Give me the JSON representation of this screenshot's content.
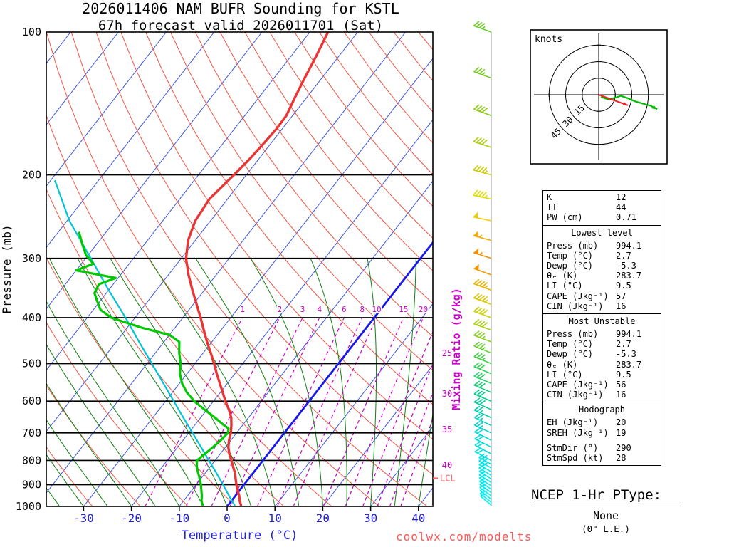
{
  "title_line1": "2026011406 NAM BUFR Sounding for KSTL",
  "title_line2": "67h forecast valid 2026011701 (Sat)",
  "watermark_text": "coolwx.com/modelts",
  "axes": {
    "pressure_label": "Pressure (mb)",
    "temperature_label": "Temperature (°C)",
    "mixing_ratio_label": "Mixing Ratio (g/kg)",
    "pressure_ticks_mb": [
      100,
      200,
      300,
      400,
      500,
      600,
      700,
      800,
      900,
      1000
    ],
    "temperature_ticks_c": [
      -30,
      -20,
      -10,
      0,
      10,
      20,
      30,
      40
    ],
    "mixing_ratio_inline_labels": [
      1,
      2,
      3,
      4,
      6,
      8,
      10,
      15,
      20
    ],
    "mixing_ratio_right_labels": [
      25,
      30,
      35,
      40
    ],
    "lcl_label": "LCL"
  },
  "chart_data": {
    "type": "line",
    "subtype": "skew-t log-p sounding",
    "pressure_axis_mb": [
      100,
      200,
      300,
      400,
      500,
      600,
      700,
      800,
      900,
      1000
    ],
    "temperature_axis_c": [
      -30,
      -20,
      -10,
      0,
      10,
      20,
      30,
      40
    ],
    "isotherm_step_c": 10,
    "highlight_isotherm_c": 0,
    "dry_adiabats_theta_k": {
      "min": 235,
      "max": 475,
      "step": 10
    },
    "moist_adiabats_thetaw_c": {
      "min": -60,
      "max": 40,
      "step": 5
    },
    "mixing_ratio_lines_gkg": [
      1,
      2,
      3,
      4,
      6,
      8,
      10,
      15,
      20,
      25,
      30,
      35,
      40
    ],
    "lcl_pressure_mb": 872,
    "temperature_profile_p_t": [
      [
        994,
        2.7
      ],
      [
        975,
        1.8
      ],
      [
        950,
        0.8
      ],
      [
        925,
        -0.4
      ],
      [
        900,
        -1.6
      ],
      [
        875,
        -2.7
      ],
      [
        850,
        -3.8
      ],
      [
        825,
        -5.2
      ],
      [
        800,
        -6.6
      ],
      [
        775,
        -8.1
      ],
      [
        750,
        -9.4
      ],
      [
        725,
        -10.4
      ],
      [
        700,
        -11.2
      ],
      [
        675,
        -12.3
      ],
      [
        650,
        -13.6
      ],
      [
        625,
        -15.4
      ],
      [
        600,
        -17.5
      ],
      [
        575,
        -19.5
      ],
      [
        550,
        -21.6
      ],
      [
        525,
        -23.8
      ],
      [
        500,
        -26.0
      ],
      [
        475,
        -28.4
      ],
      [
        450,
        -31.0
      ],
      [
        425,
        -33.6
      ],
      [
        400,
        -36.3
      ],
      [
        375,
        -39.3
      ],
      [
        350,
        -42.5
      ],
      [
        325,
        -45.8
      ],
      [
        300,
        -49.0
      ],
      [
        275,
        -51.5
      ],
      [
        250,
        -53.2
      ],
      [
        225,
        -53.8
      ],
      [
        200,
        -52.6
      ],
      [
        185,
        -51.9
      ],
      [
        175,
        -51.6
      ],
      [
        160,
        -51.2
      ],
      [
        150,
        -51.3
      ],
      [
        138,
        -52.4
      ],
      [
        125,
        -53.6
      ],
      [
        112,
        -54.8
      ],
      [
        100,
        -56.2
      ]
    ],
    "dewpoint_profile_p_t": [
      [
        994,
        -5.3
      ],
      [
        975,
        -6.2
      ],
      [
        950,
        -7.0
      ],
      [
        925,
        -8.0
      ],
      [
        900,
        -9.0
      ],
      [
        875,
        -10.2
      ],
      [
        850,
        -11.5
      ],
      [
        825,
        -12.8
      ],
      [
        800,
        -13.8
      ],
      [
        775,
        -13.2
      ],
      [
        750,
        -12.6
      ],
      [
        725,
        -12.1
      ],
      [
        700,
        -11.8
      ],
      [
        685,
        -12.4
      ],
      [
        675,
        -13.8
      ],
      [
        650,
        -17.0
      ],
      [
        625,
        -20.5
      ],
      [
        600,
        -24.0
      ],
      [
        575,
        -27.0
      ],
      [
        550,
        -29.5
      ],
      [
        525,
        -31.5
      ],
      [
        500,
        -33.0
      ],
      [
        475,
        -35.0
      ],
      [
        450,
        -36.8
      ],
      [
        435,
        -40.0
      ],
      [
        420,
        -47.0
      ],
      [
        400,
        -55.0
      ],
      [
        385,
        -58.5
      ],
      [
        370,
        -60.5
      ],
      [
        355,
        -62.5
      ],
      [
        340,
        -63.0
      ],
      [
        330,
        -60.5
      ],
      [
        318,
        -70.0
      ],
      [
        308,
        -67.5
      ],
      [
        295,
        -70.5
      ],
      [
        280,
        -73.0
      ],
      [
        265,
        -75.5
      ]
    ],
    "parcel_trace_p_t": [
      [
        1000,
        1.7
      ],
      [
        950,
        -1.3
      ],
      [
        900,
        -4.4
      ],
      [
        850,
        -7.7
      ],
      [
        800,
        -11.3
      ],
      [
        750,
        -15.1
      ],
      [
        700,
        -19.2
      ],
      [
        650,
        -23.6
      ],
      [
        600,
        -28.3
      ],
      [
        550,
        -33.4
      ],
      [
        500,
        -39.0
      ],
      [
        450,
        -45.2
      ],
      [
        400,
        -52.0
      ],
      [
        350,
        -60.0
      ],
      [
        300,
        -68.9
      ],
      [
        250,
        -79.5
      ],
      [
        206,
        -89.0
      ]
    ],
    "wind_barbs_p_spd_dir_color": [
      [
        100,
        35,
        290,
        "#66cc22"
      ],
      [
        125,
        35,
        290,
        "#77cc22"
      ],
      [
        150,
        40,
        290,
        "#88cc11"
      ],
      [
        175,
        40,
        288,
        "#aacc11"
      ],
      [
        200,
        45,
        285,
        "#cccc00"
      ],
      [
        225,
        45,
        282,
        "#dddd00"
      ],
      [
        250,
        50,
        282,
        "#eecc00"
      ],
      [
        275,
        55,
        285,
        "#f0aa00"
      ],
      [
        300,
        55,
        288,
        "#f08f00"
      ],
      [
        325,
        50,
        290,
        "#f09800"
      ],
      [
        350,
        45,
        290,
        "#eeb000"
      ],
      [
        375,
        45,
        290,
        "#ddc400"
      ],
      [
        400,
        40,
        290,
        "#ccd000"
      ],
      [
        425,
        40,
        290,
        "#aad011"
      ],
      [
        450,
        35,
        291,
        "#88d022"
      ],
      [
        475,
        35,
        292,
        "#66d033"
      ],
      [
        500,
        35,
        292,
        "#44d044"
      ],
      [
        525,
        30,
        292,
        "#33d055"
      ],
      [
        550,
        30,
        292,
        "#22d066"
      ],
      [
        575,
        30,
        293,
        "#11d077"
      ],
      [
        600,
        28,
        293,
        "#00d088"
      ],
      [
        625,
        28,
        294,
        "#00d099"
      ],
      [
        650,
        25,
        294,
        "#00d0aa"
      ],
      [
        675,
        25,
        295,
        "#00d0bb"
      ],
      [
        700,
        25,
        295,
        "#00d0cc"
      ],
      [
        725,
        22,
        296,
        "#00d6d6"
      ],
      [
        750,
        22,
        297,
        "#00dada"
      ],
      [
        775,
        20,
        298,
        "#00dede"
      ],
      [
        800,
        20,
        298,
        "#00e2e2"
      ],
      [
        815,
        20,
        299,
        "#00e5e5"
      ],
      [
        830,
        18,
        300,
        "#00e5e5"
      ],
      [
        845,
        18,
        300,
        "#00e8e8"
      ],
      [
        860,
        17,
        301,
        "#00e8e8"
      ],
      [
        875,
        16,
        302,
        "#00eaea"
      ],
      [
        890,
        15,
        302,
        "#00eaea"
      ],
      [
        905,
        15,
        303,
        "#00ecec"
      ],
      [
        920,
        14,
        304,
        "#00ecec"
      ],
      [
        935,
        13,
        305,
        "#00eeee"
      ],
      [
        950,
        12,
        306,
        "#00eeee"
      ],
      [
        965,
        12,
        307,
        "#00f0f0"
      ],
      [
        980,
        11,
        308,
        "#00f0f0"
      ],
      [
        994,
        10,
        310,
        "#00f2f2"
      ]
    ]
  },
  "hodograph": {
    "unit_label": "knots",
    "ring_interval_kt": 15,
    "ring_labels": [
      15,
      30,
      45
    ],
    "trace_uv_kt": [
      [
        2,
        -2
      ],
      [
        8,
        -4
      ],
      [
        14,
        -3
      ],
      [
        20,
        -1
      ],
      [
        26,
        -3
      ],
      [
        33,
        -6
      ],
      [
        40,
        -8
      ],
      [
        47,
        -10
      ],
      [
        53,
        -13
      ]
    ],
    "storm_motion": {
      "dir_deg": 290,
      "spd_kt": 28
    }
  },
  "stats_panel": {
    "sections": [
      {
        "header": null,
        "rows": [
          [
            "K",
            "12"
          ],
          [
            "TT",
            "44"
          ],
          [
            "PW (cm)",
            "0.71"
          ]
        ]
      },
      {
        "header": "Lowest level",
        "rows": [
          [
            "Press (mb)",
            "994.1"
          ],
          [
            "Temp (°C)",
            "2.7"
          ],
          [
            "Dewp (°C)",
            "-5.3"
          ],
          [
            "θₑ (K)",
            "283.7"
          ],
          [
            "LI (°C)",
            "9.5"
          ],
          [
            "CAPE (Jkg⁻¹)",
            "57"
          ],
          [
            "CIN (Jkg⁻¹)",
            "16"
          ]
        ]
      },
      {
        "header": "Most Unstable",
        "rows": [
          [
            "Press (mb)",
            "994.1"
          ],
          [
            "Temp (°C)",
            "2.7"
          ],
          [
            "Dewp (°C)",
            "-5.3"
          ],
          [
            "θₑ (K)",
            "283.7"
          ],
          [
            "LI (°C)",
            "9.5"
          ],
          [
            "CAPE (Jkg⁻¹)",
            "56"
          ],
          [
            "CIN (Jkg⁻¹)",
            "16"
          ]
        ]
      },
      {
        "header": "Hodograph",
        "rows": [
          [
            "EH (Jkg⁻¹)",
            "20"
          ],
          [
            "SREH (Jkg⁻¹)",
            "19"
          ],
          null,
          [
            "StmDir (°)",
            "290"
          ],
          [
            "StmSpd (kt)",
            "28"
          ]
        ]
      }
    ]
  },
  "ptype": {
    "title": "NCEP 1-Hr PType:",
    "value": "None",
    "note": "(0\" L.E.)"
  },
  "colors": {
    "temperature_curve": "#e93535",
    "dewpoint_curve": "#00c800",
    "parcel_trace": "#00c4d4",
    "isotherm": "#3d55dd",
    "zero_isotherm": "#1818e8",
    "dry_adiabat": "#ee5544",
    "moist_adiabat": "#128012",
    "mixing_ratio": "#cc00cc",
    "pressure_grid": "#000000",
    "axis_temperature_text": "#2222dd",
    "lcl": "#ff6060",
    "watermark": "#ff5555",
    "hodograph_trace": "#00bb00",
    "storm_motion_arrow": "#ee2222",
    "barb_axis_line": "#999999"
  }
}
